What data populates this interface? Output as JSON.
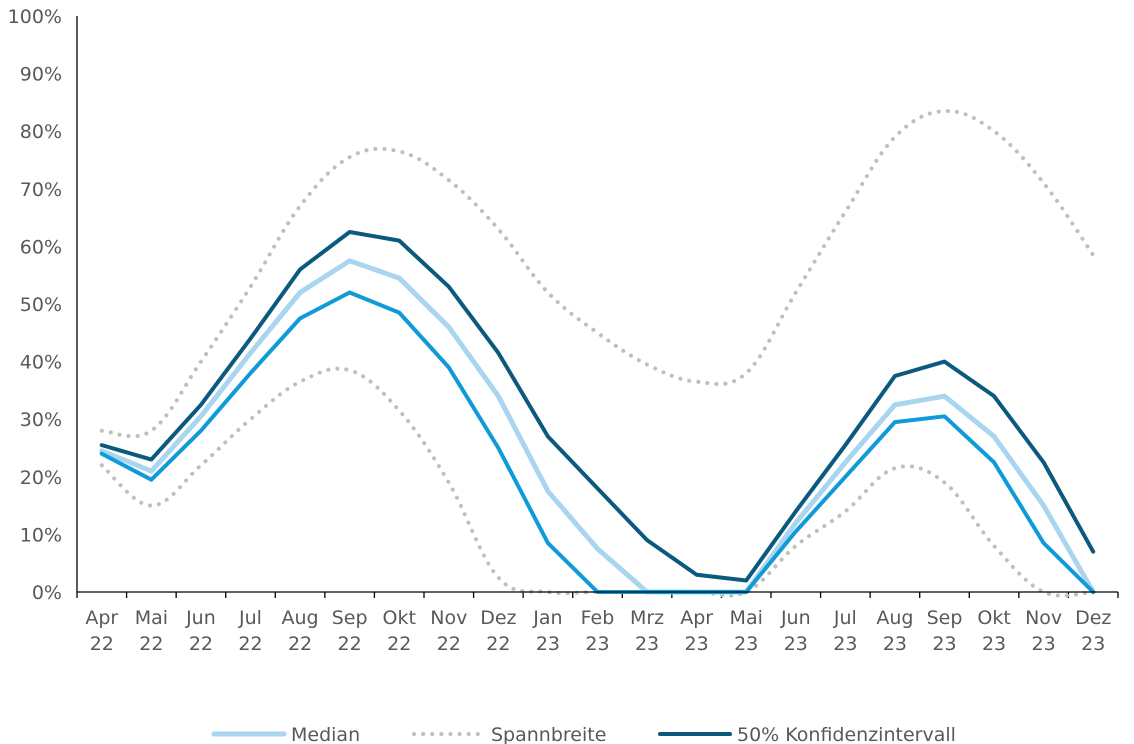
{
  "chart_data": {
    "type": "line",
    "title": "",
    "xlabel": "",
    "ylabel": "",
    "ylim": [
      0,
      100
    ],
    "y_ticks": [
      "0%",
      "10%",
      "20%",
      "30%",
      "40%",
      "50%",
      "60%",
      "70%",
      "80%",
      "90%",
      "100%"
    ],
    "categories": [
      [
        "Apr",
        "22"
      ],
      [
        "Mai",
        "22"
      ],
      [
        "Jun",
        "22"
      ],
      [
        "Jul",
        "22"
      ],
      [
        "Aug",
        "22"
      ],
      [
        "Sep",
        "22"
      ],
      [
        "Okt",
        "22"
      ],
      [
        "Nov",
        "22"
      ],
      [
        "Dez",
        "22"
      ],
      [
        "Jan",
        "23"
      ],
      [
        "Feb",
        "23"
      ],
      [
        "Mrz",
        "23"
      ],
      [
        "Apr",
        "23"
      ],
      [
        "Mai",
        "23"
      ],
      [
        "Jun",
        "23"
      ],
      [
        "Jul",
        "23"
      ],
      [
        "Aug",
        "23"
      ],
      [
        "Sep",
        "23"
      ],
      [
        "Okt",
        "23"
      ],
      [
        "Nov",
        "23"
      ],
      [
        "Dez",
        "23"
      ]
    ],
    "grid": false,
    "legend_position": "bottom",
    "colors": {
      "median": "#a9d5f0",
      "spannbreite": "#bfbfbf",
      "konfidenz_upper": "#0b5a7e",
      "konfidenz_lower": "#0f9bd7",
      "axis": "#000000",
      "text": "#595959"
    },
    "series": [
      {
        "name": "Median",
        "role": "median",
        "style": "solid",
        "values": [
          24.5,
          21,
          30.5,
          41.5,
          52,
          57.5,
          54.5,
          46,
          34,
          17.5,
          7.5,
          0,
          0,
          0,
          12,
          22.5,
          32.5,
          34,
          27,
          15,
          0
        ]
      },
      {
        "name": "Spannbreite",
        "role": "range_upper",
        "style": "dotted",
        "values": [
          28,
          28,
          40,
          53,
          67,
          75.5,
          76.5,
          71.5,
          63,
          52,
          45,
          39.5,
          36.5,
          38,
          52,
          66,
          79,
          83.5,
          80,
          71,
          58.5
        ]
      },
      {
        "name": "",
        "role": "range_lower",
        "style": "dotted",
        "values": [
          22,
          15,
          22,
          30,
          36.5,
          38.5,
          31.5,
          19,
          2.5,
          0,
          0,
          0,
          0,
          0,
          8,
          14,
          21.5,
          19,
          8,
          0,
          0
        ]
      },
      {
        "name": "50% Konfidenzintervall",
        "role": "ci_upper",
        "style": "solid",
        "values": [
          25.5,
          23,
          32.5,
          44,
          56,
          62.5,
          61,
          53,
          41.5,
          27,
          18,
          9,
          3,
          2,
          14,
          25.5,
          37.5,
          40,
          34,
          22.5,
          7
        ]
      },
      {
        "name": "",
        "role": "ci_lower",
        "style": "solid",
        "values": [
          24,
          19.5,
          28,
          38,
          47.5,
          52,
          48.5,
          39,
          25,
          8.5,
          0,
          0,
          0,
          0,
          10.5,
          20,
          29.5,
          30.5,
          22.5,
          8.5,
          0
        ]
      }
    ],
    "legend": [
      {
        "label": "Median",
        "role": "median"
      },
      {
        "label": "Spannbreite",
        "role": "spannbreite"
      },
      {
        "label": "50% Konfidenzintervall",
        "role": "konfidenz_upper"
      }
    ]
  }
}
